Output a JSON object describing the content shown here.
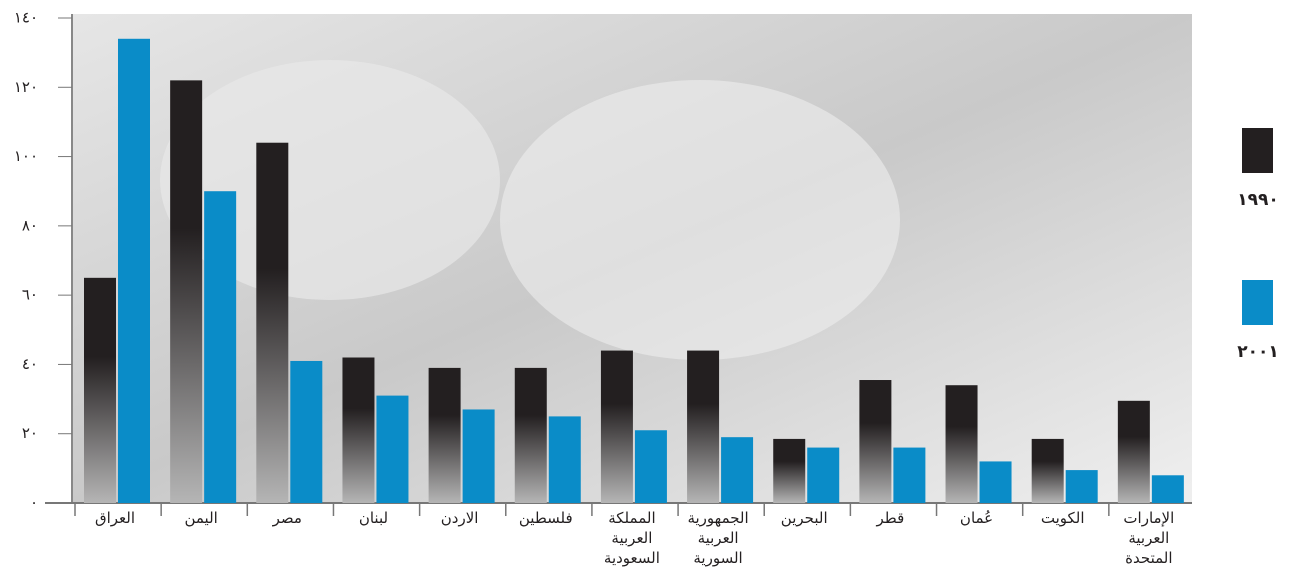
{
  "chart_data": {
    "type": "bar",
    "categories": [
      "العراق",
      "اليمن",
      "مصر",
      "لبنان",
      "الاردن",
      "فلسطين",
      "المملكة\nالعربية\nالسعودية",
      "الجمهورية\nالعربية\nالسورية",
      "البحرين",
      "قطر",
      "عُمان",
      "الكويت",
      "الإمارات\nالعربية\nالمتحدة"
    ],
    "series": [
      {
        "name": "١٩٩٠",
        "color": "#231f20",
        "values": [
          65,
          122,
          104,
          42,
          39,
          39,
          44,
          44,
          18.5,
          35.5,
          34,
          18.5,
          29.5
        ]
      },
      {
        "name": "٢٠٠١",
        "color": "#0a8cc8",
        "values": [
          134,
          90,
          41,
          31,
          27,
          25,
          21,
          19,
          16,
          16,
          12,
          9.5,
          8
        ]
      }
    ],
    "ylim": [
      0,
      140
    ],
    "yticks": [
      {
        "value": 0,
        "label": "٠"
      },
      {
        "value": 20,
        "label": "٢٠"
      },
      {
        "value": 40,
        "label": "٤٠"
      },
      {
        "value": 60,
        "label": "٦٠"
      },
      {
        "value": 80,
        "label": "٨٠"
      },
      {
        "value": 100,
        "label": "١٠٠"
      },
      {
        "value": 120,
        "label": "١٢٠"
      },
      {
        "value": 140,
        "label": "١٤٠"
      }
    ],
    "grid": false
  }
}
